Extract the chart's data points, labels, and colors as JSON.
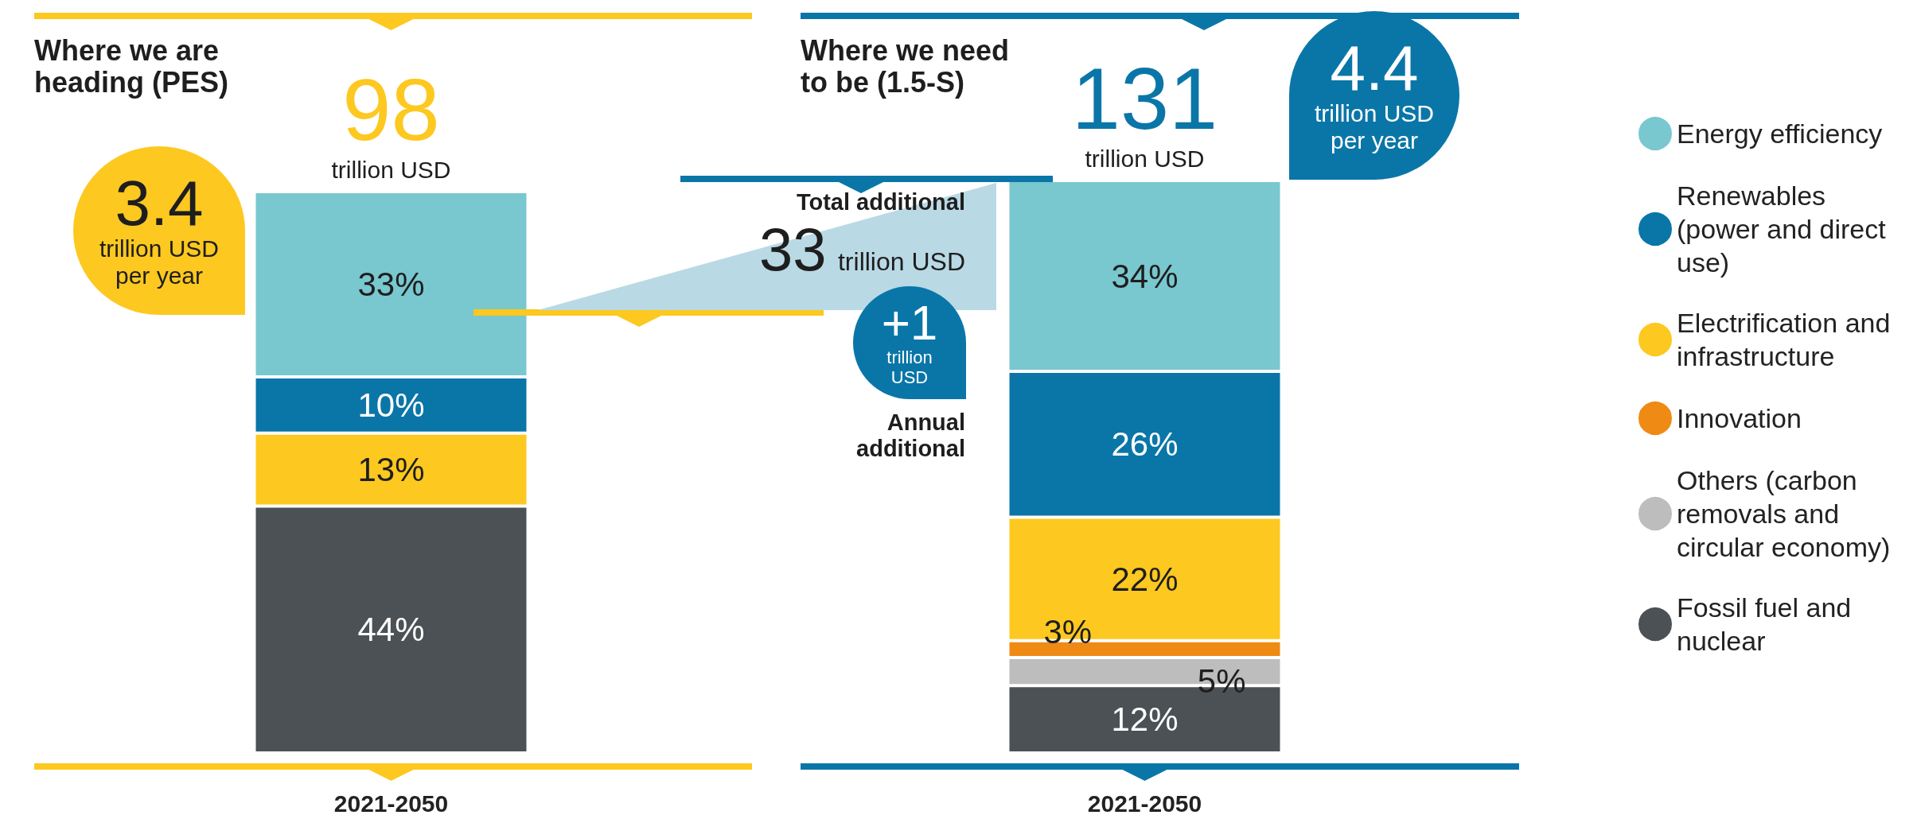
{
  "chart_data": {
    "type": "bar",
    "stacked": true,
    "categories": [
      "2021-2050",
      "2021-2050"
    ],
    "series": [
      {
        "name": "Fossil fuel and nuclear",
        "color": "#4b5154",
        "values": [
          44,
          12
        ],
        "value_labels": [
          "44%",
          "12%"
        ]
      },
      {
        "name": "Others (carbon removals and circular economy)",
        "color": "#bdbdbd",
        "values": [
          null,
          5
        ],
        "value_labels": [
          null,
          "5%"
        ]
      },
      {
        "name": "Innovation",
        "color": "#ef8a14",
        "values": [
          null,
          3
        ],
        "value_labels": [
          null,
          "3%"
        ]
      },
      {
        "name": "Electrification and infrastructure",
        "color": "#fdc81f",
        "values": [
          13,
          22
        ],
        "value_labels": [
          "13%",
          "22%"
        ]
      },
      {
        "name": "Renewables (power and direct use)",
        "color": "#0a76a8",
        "values": [
          10,
          26
        ],
        "value_labels": [
          "10%",
          "26%"
        ]
      },
      {
        "name": "Energy efficiency",
        "color": "#79c7cf",
        "values": [
          33,
          34
        ],
        "value_labels": [
          "33%",
          "34%"
        ]
      }
    ],
    "tick_labels": "x",
    "annotations": [
      "Where we are heading (PES)",
      "Where we need to be (1.5-S)",
      "3.4 trillion USD per year",
      "4.4 trillion USD per year",
      "Total additional",
      "33 trillion USD",
      "+1 trillion USD",
      "Annual additional",
      "98 trillion USD",
      "131 trillion USD"
    ],
    "legend": "right"
  }
}
